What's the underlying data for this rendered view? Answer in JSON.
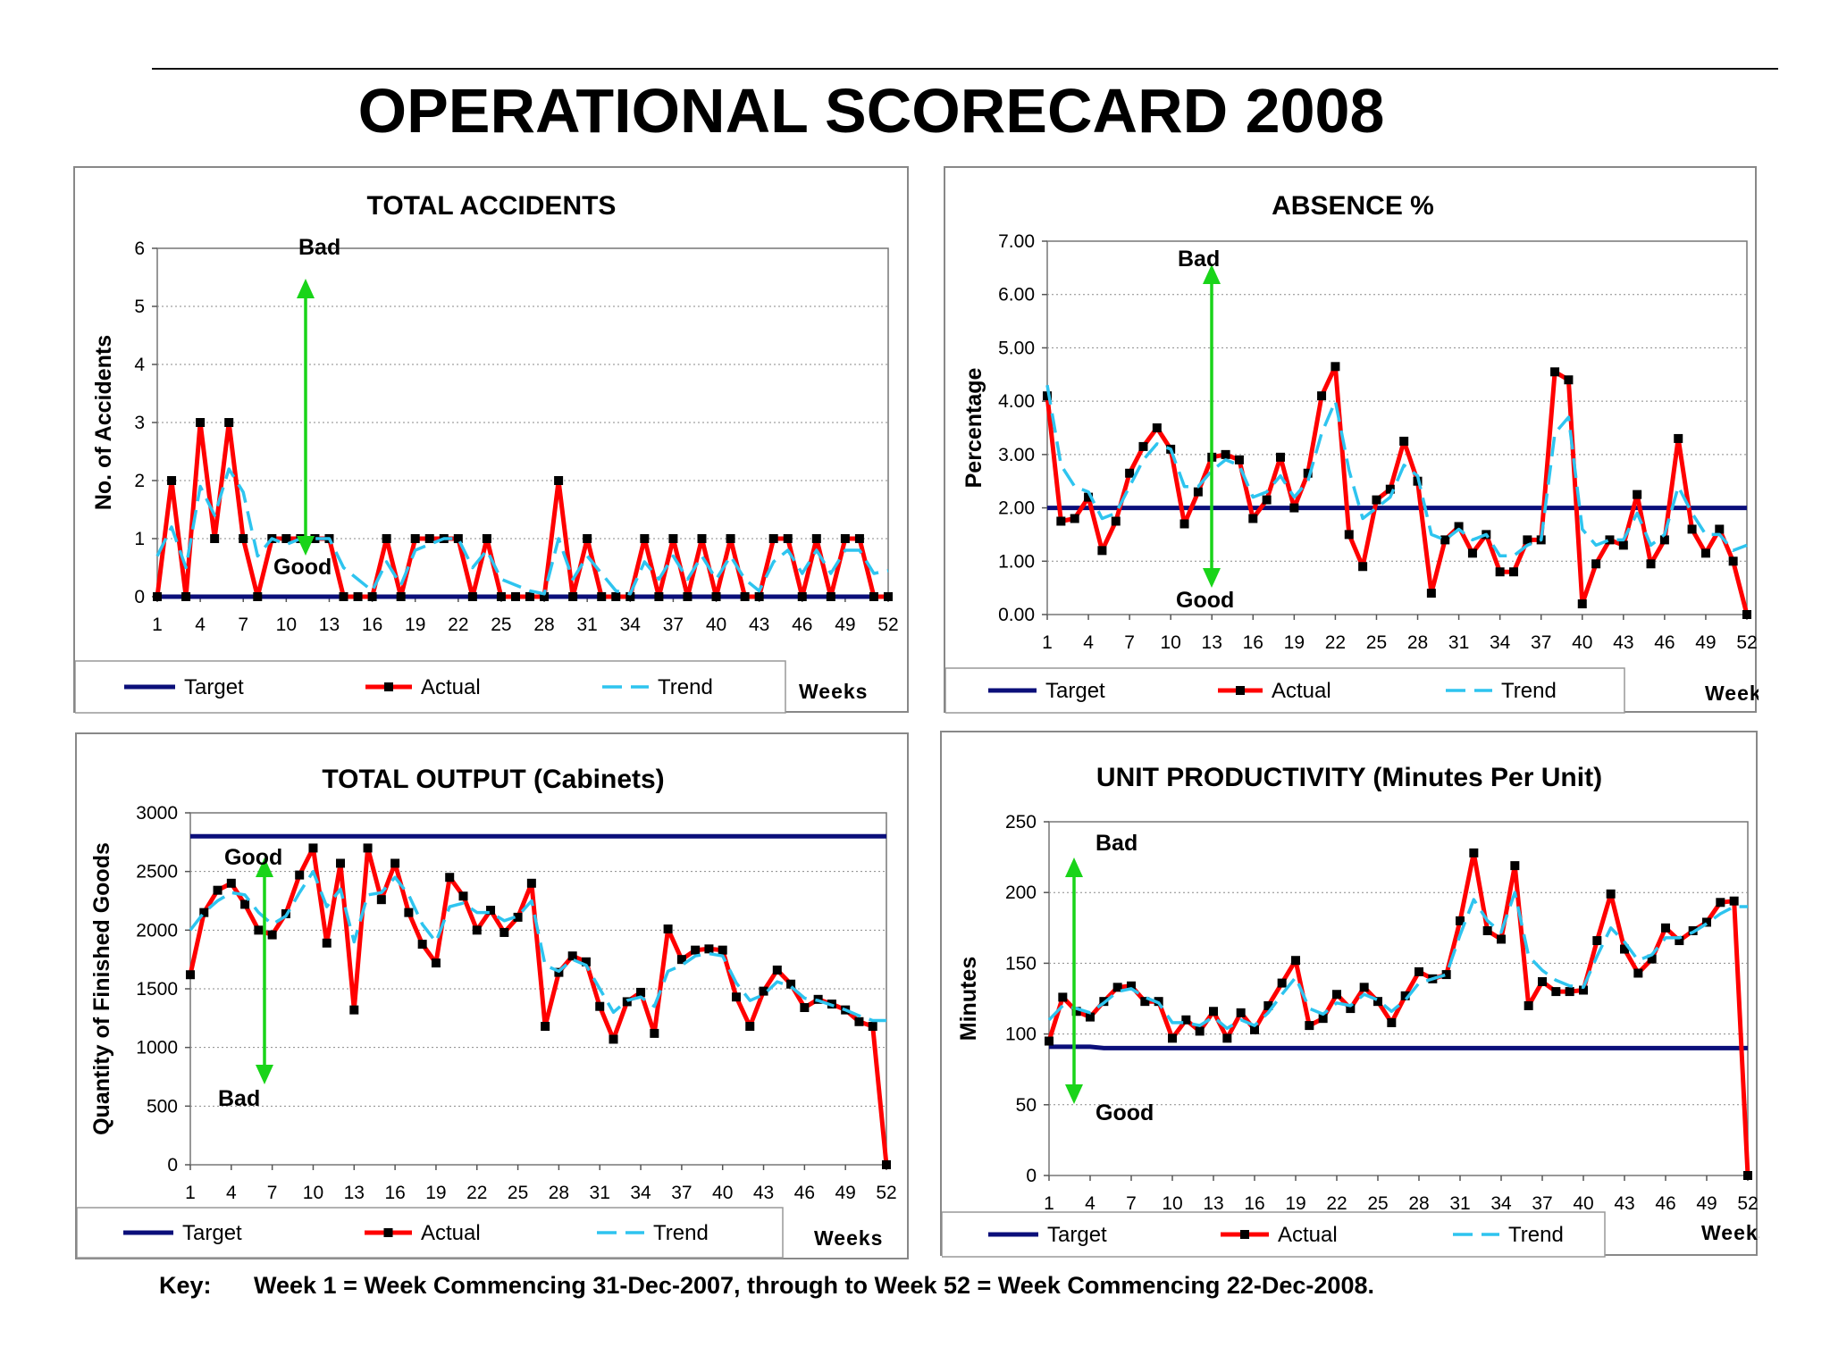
{
  "title": "OPERATIONAL SCORECARD 2008",
  "key": {
    "label": "Key:",
    "text": "Week 1 = Week Commencing 31-Dec-2007, through to Week 52 = Week Commencing 22-Dec-2008."
  },
  "colors": {
    "target": "#0b0f7a",
    "actual": "#ff0000",
    "trend": "#2ec4ef",
    "arrow": "#19d419",
    "marker": "#000000"
  },
  "chart_data": [
    {
      "id": "accidents",
      "type": "line",
      "title": "TOTAL ACCIDENTS",
      "xlabel": "Weeks",
      "ylabel": "No. of Accidents",
      "x": [
        1,
        2,
        3,
        4,
        5,
        6,
        7,
        8,
        9,
        10,
        11,
        12,
        13,
        14,
        15,
        16,
        17,
        18,
        19,
        20,
        21,
        22,
        23,
        24,
        25,
        26,
        27,
        28,
        29,
        30,
        31,
        32,
        33,
        34,
        35,
        36,
        37,
        38,
        39,
        40,
        41,
        42,
        43,
        44,
        45,
        46,
        47,
        48,
        49,
        50,
        51,
        52
      ],
      "x_ticks": [
        1,
        4,
        7,
        10,
        13,
        16,
        19,
        22,
        25,
        28,
        31,
        34,
        37,
        40,
        43,
        46,
        49,
        52
      ],
      "ylim": [
        0,
        6
      ],
      "y_ticks": [
        "0",
        "1",
        "2",
        "3",
        "4",
        "5",
        "6"
      ],
      "grid": true,
      "legend": "bottom",
      "series": [
        {
          "name": "Target",
          "values": [
            0,
            0,
            0,
            0,
            0,
            0,
            0,
            0,
            0,
            0,
            0,
            0,
            0,
            0,
            0,
            0,
            0,
            0,
            0,
            0,
            0,
            0,
            0,
            0,
            0,
            0,
            0,
            0,
            0,
            0,
            0,
            0,
            0,
            0,
            0,
            0,
            0,
            0,
            0,
            0,
            0,
            0,
            0,
            0,
            0,
            0,
            0,
            0,
            0,
            0,
            0,
            0
          ]
        },
        {
          "name": "Actual",
          "values": [
            0,
            2,
            0,
            3,
            1,
            3,
            1,
            0,
            1,
            1,
            1,
            1,
            1,
            0,
            0,
            0,
            1,
            0,
            1,
            1,
            1,
            1,
            0,
            1,
            0,
            0,
            0,
            0,
            2,
            0,
            1,
            0,
            0,
            0,
            1,
            0,
            1,
            0,
            1,
            0,
            1,
            0,
            0,
            1,
            1,
            0,
            1,
            0,
            1,
            1,
            0,
            0
          ]
        },
        {
          "name": "Trend",
          "values": [
            0.7,
            1.2,
            0.5,
            1.9,
            1.4,
            2.2,
            1.8,
            0.7,
            1.0,
            0.9,
            1.0,
            1.0,
            1.0,
            0.5,
            0.3,
            0.1,
            0.6,
            0.2,
            0.8,
            0.9,
            1.0,
            1.0,
            0.5,
            0.8,
            0.3,
            0.2,
            0.1,
            0.05,
            1.0,
            0.3,
            0.7,
            0.4,
            0.1,
            0.05,
            0.6,
            0.3,
            0.7,
            0.3,
            0.7,
            0.3,
            0.7,
            0.3,
            0.1,
            0.6,
            0.8,
            0.4,
            0.8,
            0.4,
            0.8,
            0.8,
            0.4,
            0.45
          ]
        }
      ],
      "annotations": {
        "top": "Bad",
        "bottom": "Good"
      }
    },
    {
      "id": "absence",
      "type": "line",
      "title": "ABSENCE %",
      "xlabel": "Weeks",
      "ylabel": "Percentage",
      "x": [
        1,
        2,
        3,
        4,
        5,
        6,
        7,
        8,
        9,
        10,
        11,
        12,
        13,
        14,
        15,
        16,
        17,
        18,
        19,
        20,
        21,
        22,
        23,
        24,
        25,
        26,
        27,
        28,
        29,
        30,
        31,
        32,
        33,
        34,
        35,
        36,
        37,
        38,
        39,
        40,
        41,
        42,
        43,
        44,
        45,
        46,
        47,
        48,
        49,
        50,
        51,
        52
      ],
      "x_ticks": [
        1,
        4,
        7,
        10,
        13,
        16,
        19,
        22,
        25,
        28,
        31,
        34,
        37,
        40,
        43,
        46,
        49,
        52
      ],
      "ylim": [
        0,
        7
      ],
      "y_ticks": [
        "0.00",
        "1.00",
        "2.00",
        "3.00",
        "4.00",
        "5.00",
        "6.00",
        "7.00"
      ],
      "grid": true,
      "legend": "bottom",
      "series": [
        {
          "name": "Target",
          "values": [
            2,
            2,
            2,
            2,
            2,
            2,
            2,
            2,
            2,
            2,
            2,
            2,
            2,
            2,
            2,
            2,
            2,
            2,
            2,
            2,
            2,
            2,
            2,
            2,
            2,
            2,
            2,
            2,
            2,
            2,
            2,
            2,
            2,
            2,
            2,
            2,
            2,
            2,
            2,
            2,
            2,
            2,
            2,
            2,
            2,
            2,
            2,
            2,
            2,
            2,
            2,
            2
          ]
        },
        {
          "name": "Actual",
          "values": [
            4.1,
            1.75,
            1.8,
            2.2,
            1.2,
            1.75,
            2.65,
            3.15,
            3.5,
            3.1,
            1.7,
            2.3,
            2.95,
            3.0,
            2.9,
            1.8,
            2.15,
            2.95,
            2.0,
            2.65,
            4.1,
            4.65,
            1.5,
            0.9,
            2.15,
            2.35,
            3.25,
            2.5,
            0.4,
            1.4,
            1.65,
            1.15,
            1.5,
            0.8,
            0.8,
            1.4,
            1.4,
            4.55,
            4.4,
            0.2,
            0.95,
            1.4,
            1.3,
            2.25,
            0.95,
            1.4,
            3.3,
            1.6,
            1.15,
            1.6,
            1.0,
            0.0
          ]
        },
        {
          "name": "Trend",
          "values": [
            4.3,
            2.8,
            2.4,
            2.3,
            1.8,
            1.9,
            2.4,
            2.9,
            3.2,
            3.1,
            2.4,
            2.4,
            2.7,
            2.9,
            2.8,
            2.2,
            2.3,
            2.6,
            2.2,
            2.5,
            3.4,
            4.0,
            2.7,
            1.8,
            2.0,
            2.2,
            2.8,
            2.6,
            1.5,
            1.4,
            1.6,
            1.4,
            1.5,
            1.1,
            1.1,
            1.3,
            1.4,
            3.4,
            3.7,
            1.6,
            1.3,
            1.4,
            1.4,
            1.9,
            1.3,
            1.5,
            2.4,
            1.9,
            1.5,
            1.5,
            1.2,
            1.3
          ]
        }
      ],
      "annotations": {
        "top": "Bad",
        "bottom": "Good"
      }
    },
    {
      "id": "output",
      "type": "line",
      "title": "TOTAL OUTPUT (Cabinets)",
      "xlabel": "Weeks",
      "ylabel": "Quantity of Finished Goods",
      "x": [
        1,
        2,
        3,
        4,
        5,
        6,
        7,
        8,
        9,
        10,
        11,
        12,
        13,
        14,
        15,
        16,
        17,
        18,
        19,
        20,
        21,
        22,
        23,
        24,
        25,
        26,
        27,
        28,
        29,
        30,
        31,
        32,
        33,
        34,
        35,
        36,
        37,
        38,
        39,
        40,
        41,
        42,
        43,
        44,
        45,
        46,
        47,
        48,
        49,
        50,
        51,
        52
      ],
      "x_ticks": [
        1,
        4,
        7,
        10,
        13,
        16,
        19,
        22,
        25,
        28,
        31,
        34,
        37,
        40,
        43,
        46,
        49,
        52
      ],
      "ylim": [
        0,
        3000
      ],
      "y_ticks": [
        "0",
        "500",
        "1000",
        "1500",
        "2000",
        "2500",
        "3000"
      ],
      "grid": true,
      "legend": "bottom",
      "series": [
        {
          "name": "Target",
          "values": [
            2800,
            2800,
            2800,
            2800,
            2800,
            2800,
            2800,
            2800,
            2800,
            2800,
            2800,
            2800,
            2800,
            2800,
            2800,
            2800,
            2800,
            2800,
            2800,
            2800,
            2800,
            2800,
            2800,
            2800,
            2800,
            2800,
            2800,
            2800,
            2800,
            2800,
            2800,
            2800,
            2800,
            2800,
            2800,
            2800,
            2800,
            2800,
            2800,
            2800,
            2800,
            2800,
            2800,
            2800,
            2800,
            2800,
            2800,
            2800,
            2800,
            2800,
            2800,
            2800
          ]
        },
        {
          "name": "Actual",
          "values": [
            1620,
            2150,
            2340,
            2400,
            2220,
            2000,
            1960,
            2140,
            2470,
            2700,
            1890,
            2570,
            1320,
            2700,
            2260,
            2570,
            2150,
            1880,
            1720,
            2450,
            2290,
            2000,
            2170,
            1980,
            2110,
            2400,
            1180,
            1640,
            1780,
            1730,
            1350,
            1070,
            1390,
            1470,
            1120,
            2010,
            1750,
            1830,
            1840,
            1830,
            1430,
            1180,
            1480,
            1660,
            1540,
            1340,
            1410,
            1370,
            1320,
            1220,
            1180,
            0
          ]
        },
        {
          "name": "Trend",
          "values": [
            2000,
            2150,
            2250,
            2320,
            2300,
            2150,
            2050,
            2120,
            2320,
            2500,
            2200,
            2350,
            1900,
            2300,
            2320,
            2450,
            2300,
            2050,
            1900,
            2200,
            2230,
            2150,
            2150,
            2080,
            2120,
            2250,
            1700,
            1650,
            1750,
            1700,
            1500,
            1300,
            1400,
            1430,
            1350,
            1650,
            1700,
            1780,
            1800,
            1780,
            1550,
            1400,
            1450,
            1560,
            1520,
            1420,
            1400,
            1360,
            1320,
            1270,
            1230,
            1230
          ]
        }
      ],
      "annotations": {
        "top": "Good",
        "bottom": "Bad"
      }
    },
    {
      "id": "productivity",
      "type": "line",
      "title": "UNIT PRODUCTIVITY (Minutes Per Unit)",
      "xlabel": "Weeks",
      "ylabel": "Minutes",
      "x": [
        1,
        2,
        3,
        4,
        5,
        6,
        7,
        8,
        9,
        10,
        11,
        12,
        13,
        14,
        15,
        16,
        17,
        18,
        19,
        20,
        21,
        22,
        23,
        24,
        25,
        26,
        27,
        28,
        29,
        30,
        31,
        32,
        33,
        34,
        35,
        36,
        37,
        38,
        39,
        40,
        41,
        42,
        43,
        44,
        45,
        46,
        47,
        48,
        49,
        50,
        51,
        52
      ],
      "x_ticks": [
        1,
        4,
        7,
        10,
        13,
        16,
        19,
        22,
        25,
        28,
        31,
        34,
        37,
        40,
        43,
        46,
        49,
        52
      ],
      "ylim": [
        0,
        250
      ],
      "y_ticks": [
        "0",
        "50",
        "100",
        "150",
        "200",
        "250"
      ],
      "grid": true,
      "legend": "bottom",
      "series": [
        {
          "name": "Target",
          "values": [
            91,
            91,
            91,
            91,
            90,
            90,
            90,
            90,
            90,
            90,
            90,
            90,
            90,
            90,
            90,
            90,
            90,
            90,
            90,
            90,
            90,
            90,
            90,
            90,
            90,
            90,
            90,
            90,
            90,
            90,
            90,
            90,
            90,
            90,
            90,
            90,
            90,
            90,
            90,
            90,
            90,
            90,
            90,
            90,
            90,
            90,
            90,
            90,
            90,
            90,
            90,
            90
          ]
        },
        {
          "name": "Actual",
          "values": [
            95,
            126,
            116,
            112,
            123,
            133,
            134,
            123,
            123,
            97,
            110,
            102,
            116,
            97,
            115,
            103,
            120,
            136,
            152,
            106,
            111,
            128,
            118,
            133,
            123,
            108,
            127,
            144,
            139,
            142,
            180,
            228,
            173,
            167,
            219,
            120,
            137,
            130,
            130,
            131,
            166,
            199,
            160,
            143,
            153,
            175,
            166,
            173,
            179,
            193,
            194,
            0
          ]
        },
        {
          "name": "Trend",
          "values": [
            110,
            120,
            118,
            115,
            122,
            130,
            132,
            126,
            122,
            108,
            108,
            106,
            112,
            104,
            110,
            106,
            115,
            128,
            140,
            118,
            114,
            122,
            120,
            128,
            124,
            116,
            124,
            136,
            139,
            142,
            170,
            195,
            180,
            172,
            200,
            155,
            145,
            138,
            134,
            133,
            155,
            175,
            165,
            152,
            156,
            168,
            168,
            172,
            178,
            185,
            190,
            190
          ]
        }
      ],
      "annotations": {
        "top": "Bad",
        "bottom": "Good"
      }
    }
  ]
}
